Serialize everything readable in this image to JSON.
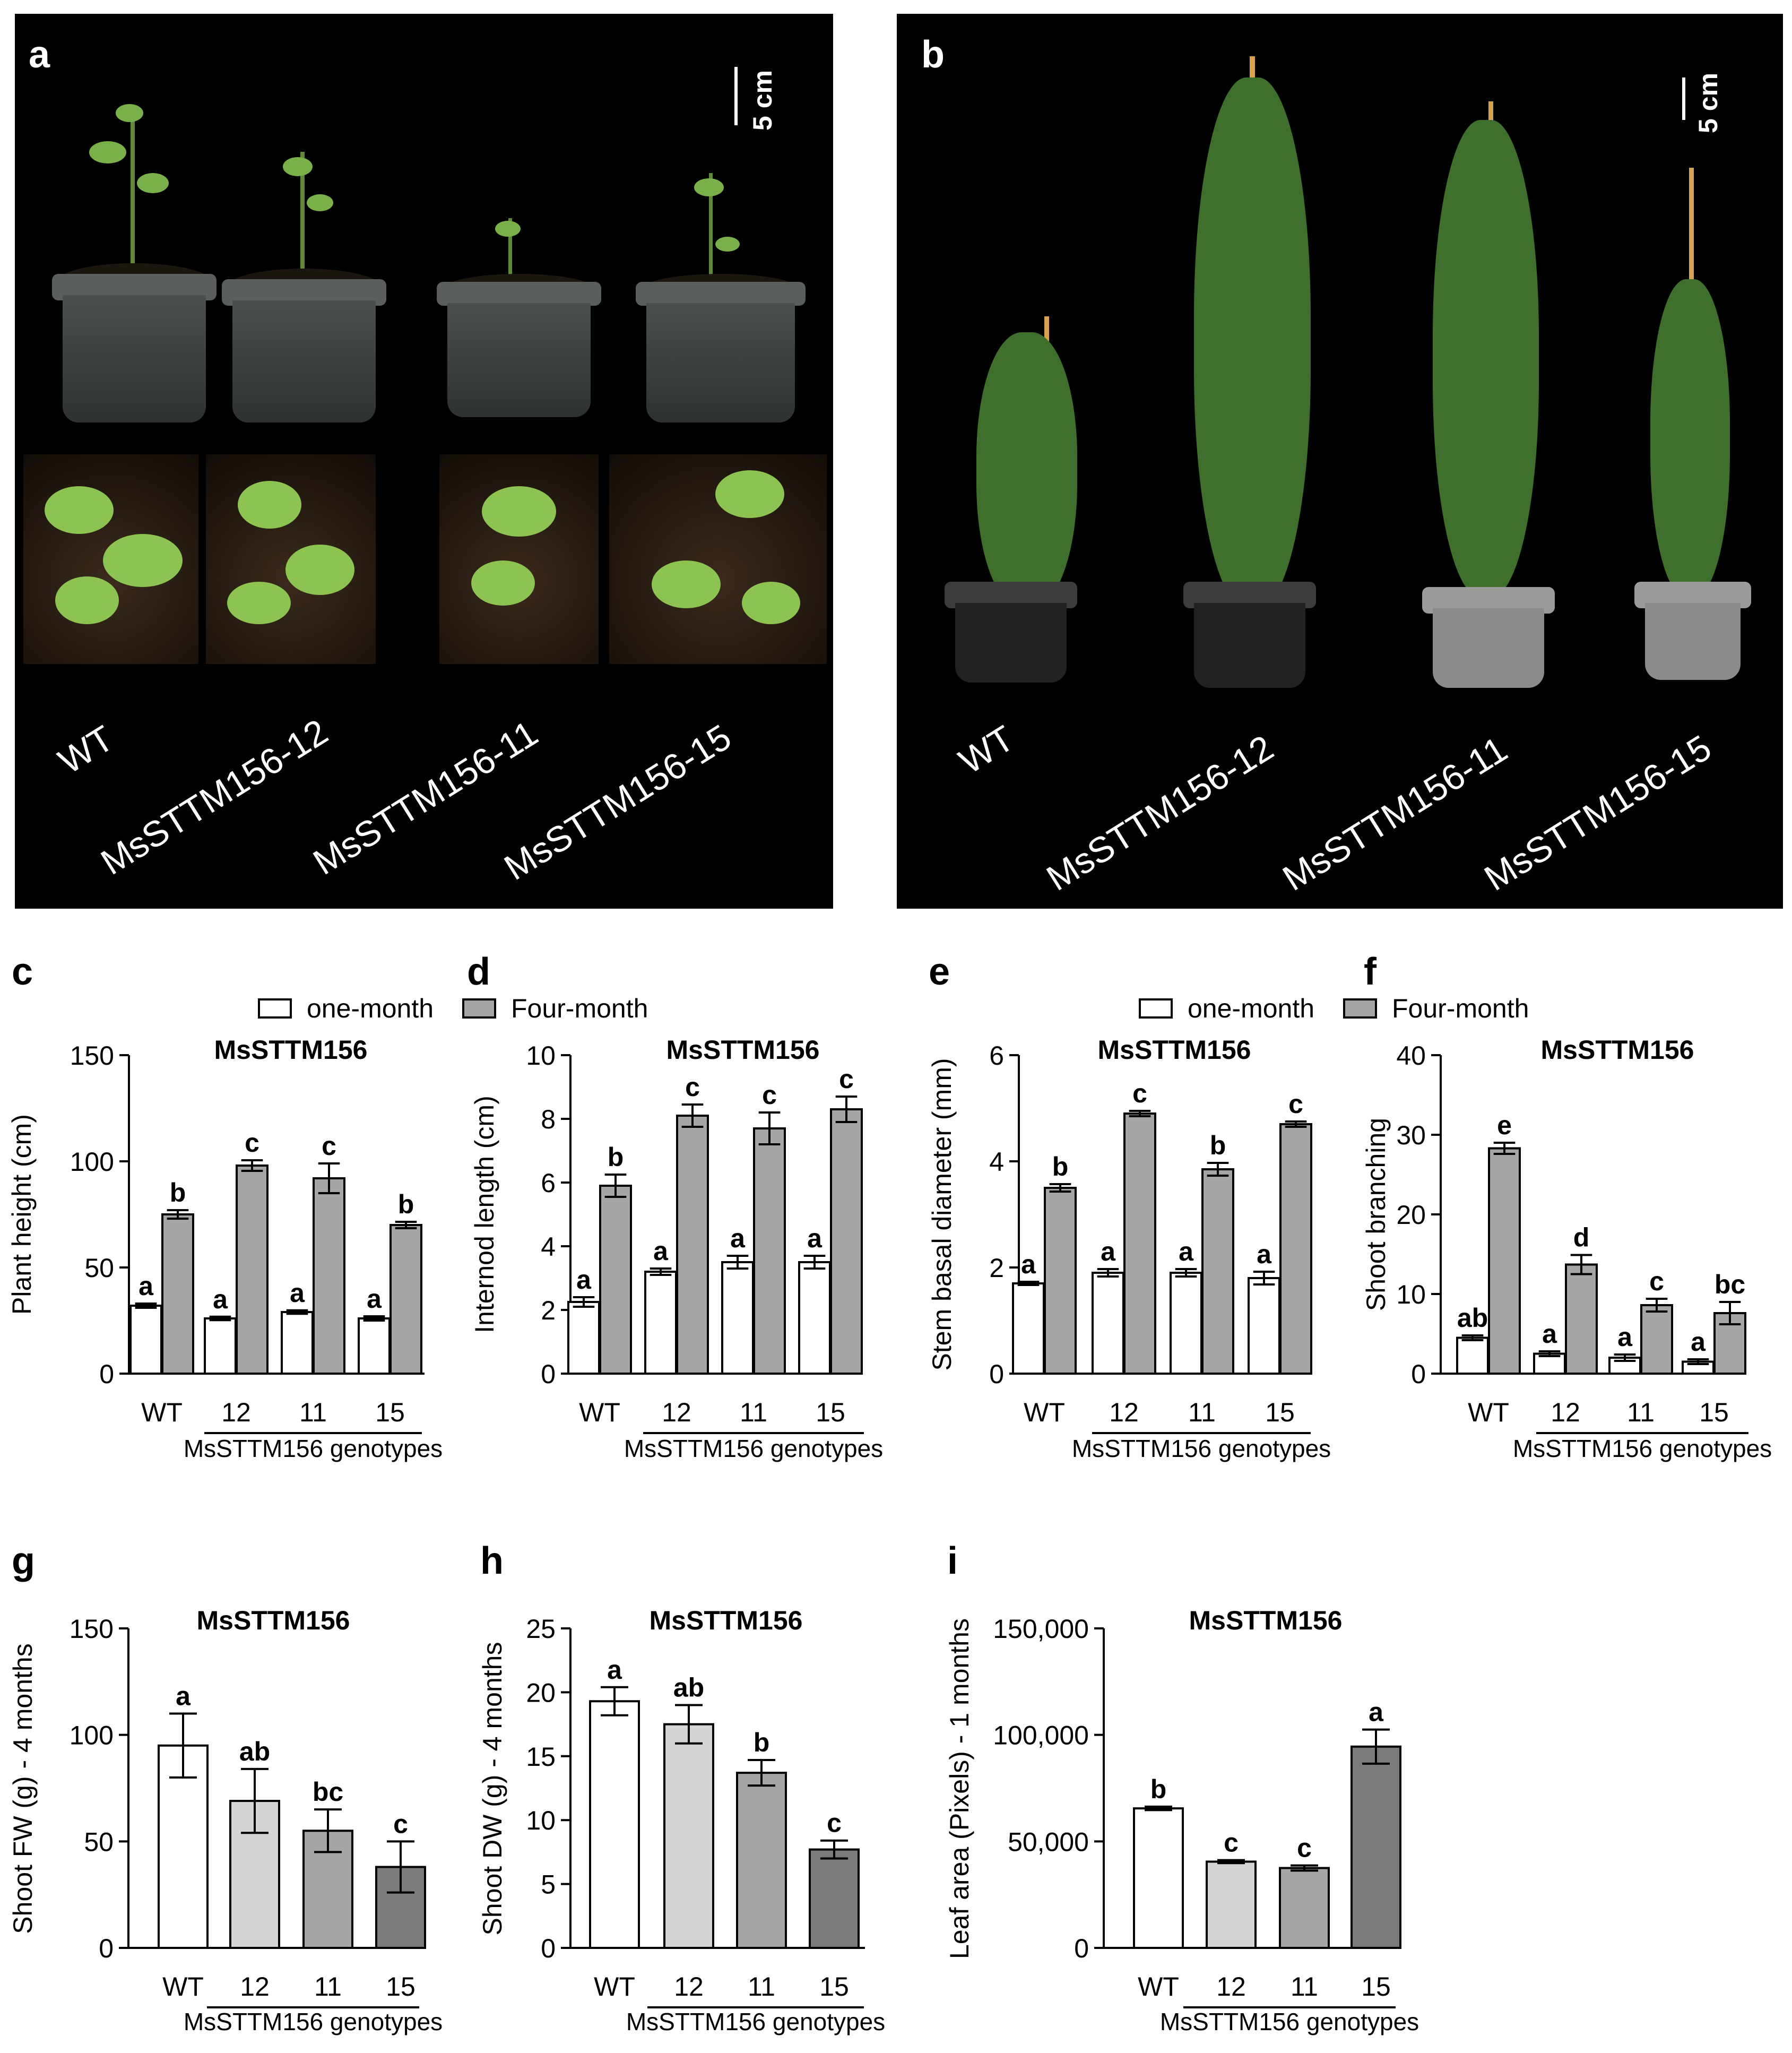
{
  "panels": {
    "a": {
      "letter": "a",
      "scale": "5 cm",
      "genotypes": [
        "WT",
        "MsSTTM156-12",
        "MsSTTM156-11",
        "MsSTTM156-15"
      ]
    },
    "b": {
      "letter": "b",
      "scale": "5 cm",
      "genotypes": [
        "WT",
        "MsSTTM156-12",
        "MsSTTM156-11",
        "MsSTTM156-15"
      ]
    }
  },
  "legend": {
    "one_month": "one-month",
    "four_month": "Four-month"
  },
  "colors": {
    "white_bar": "#ffffff",
    "four_month_bar": "#a5a5a8",
    "line_12": "#d4d4d4",
    "line_11": "#a5a5a8",
    "line_15": "#7b7b7e",
    "photo_background": "#000000"
  },
  "chart_data": [
    {
      "panel": "c",
      "type": "bar",
      "title": "MsSTTM156",
      "ylabel": "Plant height (cm)",
      "xlabel": "MsSTTM156 genotypes",
      "categories": [
        "WT",
        "12",
        "11",
        "15"
      ],
      "ylim": [
        0,
        150
      ],
      "yticks": [
        0,
        50,
        100,
        150
      ],
      "legend": true,
      "series": [
        {
          "name": "one-month",
          "values": [
            32,
            26,
            29,
            26
          ],
          "errors": [
            1,
            0.8,
            0.8,
            1
          ],
          "letters": [
            "a",
            "a",
            "a",
            "a"
          ]
        },
        {
          "name": "Four-month",
          "values": [
            75,
            98,
            92,
            70
          ],
          "errors": [
            2,
            2.5,
            7,
            1.5
          ],
          "letters": [
            "b",
            "c",
            "c",
            "b"
          ]
        }
      ]
    },
    {
      "panel": "d",
      "type": "bar",
      "title": "MsSTTM156",
      "ylabel": "Internod length (cm)",
      "xlabel": "MsSTTM156 genotypes",
      "categories": [
        "WT",
        "12",
        "11",
        "15"
      ],
      "ylim": [
        0,
        10
      ],
      "yticks": [
        0,
        2,
        4,
        6,
        8,
        10
      ],
      "legend": false,
      "series": [
        {
          "name": "one-month",
          "values": [
            2.25,
            3.2,
            3.5,
            3.5
          ],
          "errors": [
            0.15,
            0.1,
            0.2,
            0.2
          ],
          "letters": [
            "a",
            "a",
            "a",
            "a"
          ]
        },
        {
          "name": "Four-month",
          "values": [
            5.9,
            8.1,
            7.7,
            8.3
          ],
          "errors": [
            0.35,
            0.35,
            0.5,
            0.4
          ],
          "letters": [
            "b",
            "c",
            "c",
            "c"
          ]
        }
      ]
    },
    {
      "panel": "e",
      "type": "bar",
      "title": "MsSTTM156",
      "ylabel": "Stem basal diameter (mm)",
      "xlabel": "MsSTTM156 genotypes",
      "categories": [
        "WT",
        "12",
        "11",
        "15"
      ],
      "ylim": [
        0,
        6
      ],
      "yticks": [
        0,
        2,
        4,
        6
      ],
      "legend": true,
      "series": [
        {
          "name": "one-month",
          "values": [
            1.7,
            1.9,
            1.9,
            1.8
          ],
          "errors": [
            0.03,
            0.07,
            0.07,
            0.12
          ],
          "letters": [
            "a",
            "a",
            "a",
            "a"
          ]
        },
        {
          "name": "Four-month",
          "values": [
            3.5,
            4.9,
            3.85,
            4.7
          ],
          "errors": [
            0.07,
            0.05,
            0.12,
            0.05
          ],
          "letters": [
            "b",
            "c",
            "b",
            "c"
          ]
        }
      ]
    },
    {
      "panel": "f",
      "type": "bar",
      "title": "MsSTTM156",
      "ylabel": "Shoot branching",
      "xlabel": "MsSTTM156 genotypes",
      "categories": [
        "WT",
        "12",
        "11",
        "15"
      ],
      "ylim": [
        0,
        40
      ],
      "yticks": [
        0,
        10,
        20,
        30,
        40
      ],
      "legend": false,
      "series": [
        {
          "name": "one-month",
          "values": [
            4.5,
            2.5,
            2,
            1.5
          ],
          "errors": [
            0.3,
            0.3,
            0.4,
            0.3
          ],
          "letters": [
            "ab",
            "a",
            "a",
            "a"
          ]
        },
        {
          "name": "Four-month",
          "values": [
            28.3,
            13.7,
            8.6,
            7.6
          ],
          "errors": [
            0.7,
            1.2,
            0.8,
            1.4
          ],
          "letters": [
            "e",
            "d",
            "c",
            "bc"
          ]
        }
      ]
    },
    {
      "panel": "g",
      "type": "bar",
      "title": "MsSTTM156",
      "ylabel": "Shoot FW (g) - 4 months",
      "xlabel": "MsSTTM156 genotypes",
      "categories": [
        "WT",
        "12",
        "11",
        "15"
      ],
      "ylim": [
        0,
        150
      ],
      "yticks": [
        0,
        50,
        100,
        150
      ],
      "values": [
        95,
        69,
        55,
        38
      ],
      "errors": [
        15,
        15,
        10,
        12
      ],
      "letters": [
        "a",
        "ab",
        "bc",
        "c"
      ]
    },
    {
      "panel": "h",
      "type": "bar",
      "title": "MsSTTM156",
      "ylabel": "Shoot DW (g) - 4 months",
      "xlabel": "MsSTTM156 genotypes",
      "categories": [
        "WT",
        "12",
        "11",
        "15"
      ],
      "ylim": [
        0,
        25
      ],
      "yticks": [
        0,
        5,
        10,
        15,
        20,
        25
      ],
      "values": [
        19.3,
        17.5,
        13.7,
        7.7
      ],
      "errors": [
        1.1,
        1.5,
        1.0,
        0.7
      ],
      "letters": [
        "a",
        "ab",
        "b",
        "c"
      ]
    },
    {
      "panel": "i",
      "type": "bar",
      "title": "MsSTTM156",
      "ylabel": "Leaf area (Pixels) - 1 months",
      "xlabel": "MsSTTM156 genotypes",
      "categories": [
        "WT",
        "12",
        "11",
        "15"
      ],
      "ylim": [
        0,
        150000
      ],
      "yticks": [
        0,
        50000,
        100000,
        150000
      ],
      "ytick_labels": [
        "0",
        "50,000",
        "100,000",
        "150,000"
      ],
      "values": [
        65500,
        40500,
        37500,
        94500
      ],
      "errors": [
        800,
        700,
        1200,
        8000
      ],
      "letters": [
        "b",
        "c",
        "c",
        "a"
      ]
    }
  ],
  "chart_letters": [
    "c",
    "d",
    "e",
    "f",
    "g",
    "h",
    "i"
  ]
}
